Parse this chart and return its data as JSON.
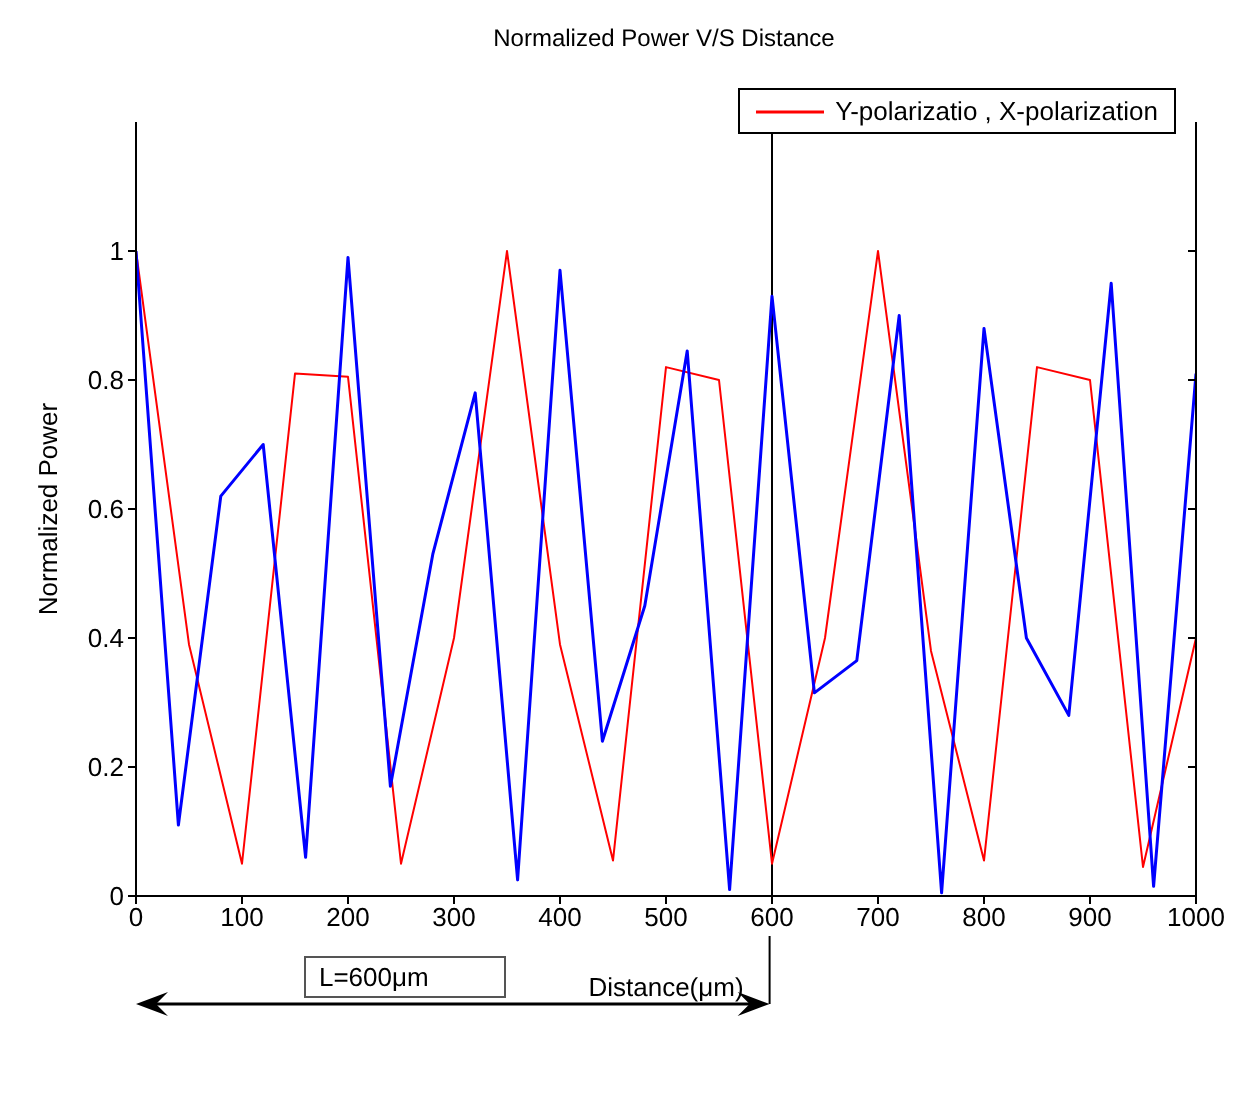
{
  "chart_data": {
    "type": "line",
    "title": "Normalized Power V/S Distance",
    "xlabel": "Distance(μm)",
    "ylabel": "Normalized Power",
    "annotations": [
      "L=600μm"
    ],
    "series": [
      {
        "name": "Y-polarizatio , X-polarization",
        "color": "#ff0000",
        "x": [
          0,
          50,
          100,
          150,
          200,
          250,
          300,
          350,
          400,
          450,
          500,
          550,
          600,
          650,
          700,
          750,
          800,
          850,
          900,
          950,
          1000
        ],
        "values": [
          1.0,
          0.39,
          0.05,
          0.81,
          0.805,
          0.05,
          0.4,
          1.0,
          0.39,
          0.055,
          0.82,
          0.8,
          0.05,
          0.4,
          1.0,
          0.38,
          0.055,
          0.82,
          0.8,
          0.045,
          0.4
        ]
      },
      {
        "color": "#0000ff",
        "x": [
          0,
          40,
          80,
          120,
          160,
          200,
          240,
          280,
          320,
          360,
          400,
          440,
          480,
          520,
          560,
          600,
          640,
          680,
          720,
          760,
          800,
          840,
          880,
          920,
          960,
          1000
        ],
        "values": [
          1.0,
          0.11,
          0.62,
          0.7,
          0.06,
          0.99,
          0.17,
          0.53,
          0.78,
          0.025,
          0.97,
          0.24,
          0.45,
          0.845,
          0.01,
          0.93,
          0.315,
          0.365,
          0.9,
          0.005,
          0.88,
          0.4,
          0.28,
          0.95,
          0.015,
          0.81
        ]
      }
    ],
    "xlim": [
      0,
      1000
    ],
    "xticks": [
      0,
      100,
      200,
      300,
      400,
      500,
      600,
      700,
      800,
      900,
      1000
    ],
    "ylim": [
      0,
      1.2
    ],
    "yticks": [
      0,
      0.2,
      0.4,
      0.6,
      0.8,
      1
    ],
    "ref_lines": [
      {
        "axis": "x",
        "value": 600,
        "color": "#000000"
      }
    ],
    "grid": false,
    "legend": "top right",
    "marker": "none",
    "line_style": "solid"
  }
}
